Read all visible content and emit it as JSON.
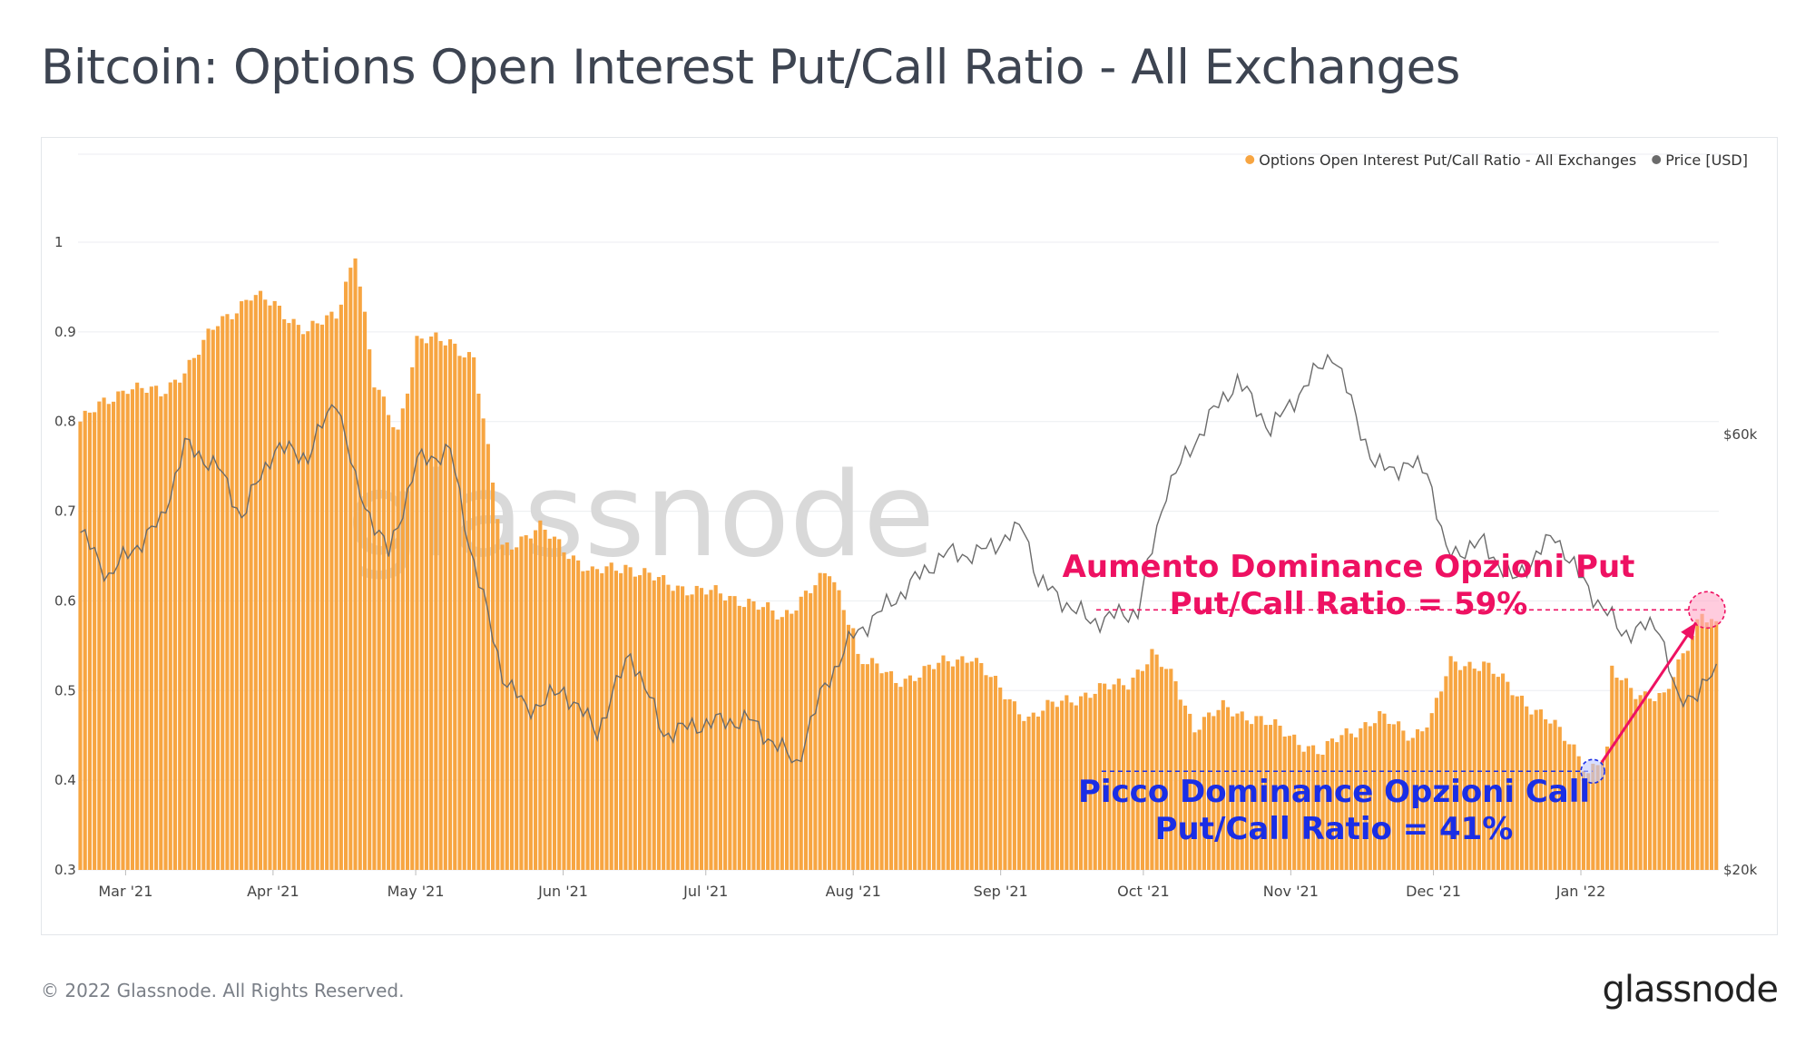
{
  "title": "Bitcoin: Options Open Interest Put/Call Ratio - All Exchanges",
  "footer": {
    "copyright": "© 2022 Glassnode. All Rights Reserved.",
    "logo": "glassnode"
  },
  "watermark": "glassnode",
  "colors": {
    "bars": "#f7a541",
    "price_line": "#6b6b6b",
    "put_annotation": "#ee1162",
    "call_annotation": "#1a2ee6",
    "grid": "#eceef1",
    "axis_text": "#444444"
  },
  "chart_data": {
    "type": "bar",
    "legend": {
      "placement": "top-right",
      "entries": [
        {
          "name": "Options Open Interest Put/Call Ratio - All Exchanges",
          "color": "#f7a541"
        },
        {
          "name": "Price [USD]",
          "color": "#6b6b6b"
        }
      ]
    },
    "x_range": [
      "2021-02-19",
      "2022-01-30"
    ],
    "x_ticks": [
      "Mar '21",
      "Apr '21",
      "May '21",
      "Jun '21",
      "Jul '21",
      "Aug '21",
      "Sep '21",
      "Oct '21",
      "Nov '21",
      "Dec '21",
      "Jan '22"
    ],
    "x_tick_dates": [
      "2021-03-01",
      "2021-04-01",
      "2021-05-01",
      "2021-06-01",
      "2021-07-01",
      "2021-08-01",
      "2021-09-01",
      "2021-10-01",
      "2021-11-01",
      "2021-12-01",
      "2022-01-01"
    ],
    "y_left": {
      "ticks": [
        "0.3",
        "0.4",
        "0.5",
        "0.6",
        "0.7",
        "0.8",
        "0.9",
        "1"
      ],
      "range": [
        0.3,
        1.0
      ]
    },
    "y_right": {
      "ticks": [
        "$20k",
        "$60k"
      ],
      "range": [
        20000,
        60000
      ]
    },
    "grid": true,
    "series": [
      {
        "name": "Options Open Interest Put/Call Ratio - All Exchanges",
        "type": "bar",
        "points": [
          [
            "2021-02-19",
            0.8
          ],
          [
            "2021-03-01",
            0.84
          ],
          [
            "2021-03-08",
            0.83
          ],
          [
            "2021-03-15",
            0.87
          ],
          [
            "2021-03-20",
            0.91
          ],
          [
            "2021-03-27",
            0.94
          ],
          [
            "2021-04-01",
            0.93
          ],
          [
            "2021-04-08",
            0.9
          ],
          [
            "2021-04-14",
            0.92
          ],
          [
            "2021-04-18",
            0.99
          ],
          [
            "2021-04-22",
            0.84
          ],
          [
            "2021-04-27",
            0.79
          ],
          [
            "2021-05-01",
            0.89
          ],
          [
            "2021-05-08",
            0.89
          ],
          [
            "2021-05-13",
            0.87
          ],
          [
            "2021-05-19",
            0.66
          ],
          [
            "2021-05-27",
            0.68
          ],
          [
            "2021-06-01",
            0.66
          ],
          [
            "2021-06-07",
            0.63
          ],
          [
            "2021-06-14",
            0.64
          ],
          [
            "2021-06-22",
            0.62
          ],
          [
            "2021-07-01",
            0.61
          ],
          [
            "2021-07-10",
            0.6
          ],
          [
            "2021-07-17",
            0.58
          ],
          [
            "2021-07-22",
            0.61
          ],
          [
            "2021-07-27",
            0.63
          ],
          [
            "2021-08-01",
            0.57
          ],
          [
            "2021-08-02",
            0.54
          ],
          [
            "2021-08-10",
            0.51
          ],
          [
            "2021-08-20",
            0.53
          ],
          [
            "2021-08-26",
            0.54
          ],
          [
            "2021-09-01",
            0.5
          ],
          [
            "2021-09-07",
            0.47
          ],
          [
            "2021-09-15",
            0.49
          ],
          [
            "2021-09-22",
            0.5
          ],
          [
            "2021-09-28",
            0.51
          ],
          [
            "2021-10-03",
            0.54
          ],
          [
            "2021-10-08",
            0.51
          ],
          [
            "2021-10-12",
            0.46
          ],
          [
            "2021-10-18",
            0.48
          ],
          [
            "2021-10-25",
            0.47
          ],
          [
            "2021-11-01",
            0.45
          ],
          [
            "2021-11-08",
            0.43
          ],
          [
            "2021-11-12",
            0.45
          ],
          [
            "2021-11-20",
            0.47
          ],
          [
            "2021-11-27",
            0.45
          ],
          [
            "2021-12-01",
            0.47
          ],
          [
            "2021-12-05",
            0.53
          ],
          [
            "2021-12-12",
            0.53
          ],
          [
            "2021-12-18",
            0.5
          ],
          [
            "2021-12-25",
            0.47
          ],
          [
            "2022-01-01",
            0.43
          ],
          [
            "2022-01-03",
            0.41
          ],
          [
            "2022-01-07",
            0.43
          ],
          [
            "2022-01-08",
            0.52
          ],
          [
            "2022-01-13",
            0.5
          ],
          [
            "2022-01-19",
            0.49
          ],
          [
            "2022-01-23",
            0.54
          ],
          [
            "2022-01-27",
            0.59
          ],
          [
            "2022-01-30",
            0.57
          ]
        ]
      },
      {
        "name": "Price [USD]",
        "type": "line",
        "points": [
          [
            "2021-02-19",
            51000
          ],
          [
            "2021-02-25",
            47000
          ],
          [
            "2021-03-01",
            49000
          ],
          [
            "2021-03-08",
            52000
          ],
          [
            "2021-03-13",
            59000
          ],
          [
            "2021-03-20",
            57000
          ],
          [
            "2021-03-25",
            52500
          ],
          [
            "2021-04-01",
            58800
          ],
          [
            "2021-04-08",
            58000
          ],
          [
            "2021-04-14",
            63500
          ],
          [
            "2021-04-18",
            55500
          ],
          [
            "2021-04-25",
            49000
          ],
          [
            "2021-05-01",
            57500
          ],
          [
            "2021-05-08",
            58500
          ],
          [
            "2021-05-12",
            50000
          ],
          [
            "2021-05-19",
            38000
          ],
          [
            "2021-05-24",
            34700
          ],
          [
            "2021-06-01",
            36500
          ],
          [
            "2021-06-08",
            32700
          ],
          [
            "2021-06-15",
            40000
          ],
          [
            "2021-06-22",
            32500
          ],
          [
            "2021-07-01",
            33500
          ],
          [
            "2021-07-10",
            33800
          ],
          [
            "2021-07-20",
            29800
          ],
          [
            "2021-07-26",
            37000
          ],
          [
            "2021-08-01",
            41500
          ],
          [
            "2021-08-10",
            45000
          ],
          [
            "2021-08-20",
            49000
          ],
          [
            "2021-08-27",
            49000
          ],
          [
            "2021-09-06",
            51500
          ],
          [
            "2021-09-09",
            46500
          ],
          [
            "2021-09-20",
            42800
          ],
          [
            "2021-09-30",
            43800
          ],
          [
            "2021-10-06",
            55000
          ],
          [
            "2021-10-15",
            61500
          ],
          [
            "2021-10-21",
            65000
          ],
          [
            "2021-10-28",
            60500
          ],
          [
            "2021-11-10",
            67600
          ],
          [
            "2021-11-19",
            57000
          ],
          [
            "2021-11-30",
            57000
          ],
          [
            "2021-12-04",
            49000
          ],
          [
            "2021-12-12",
            50000
          ],
          [
            "2021-12-18",
            46500
          ],
          [
            "2021-12-27",
            50800
          ],
          [
            "2022-01-01",
            47000
          ],
          [
            "2022-01-10",
            41800
          ],
          [
            "2022-01-18",
            42500
          ],
          [
            "2022-01-22",
            35100
          ],
          [
            "2022-01-30",
            38000
          ]
        ]
      }
    ],
    "annotations": [
      {
        "label": "Aumento Dominance Opzioni Put",
        "value_label": "Put/Call Ratio = 59%",
        "date": "2022-01-27",
        "value": 0.59,
        "color": "#ee1162"
      },
      {
        "label": "Picco Dominance Opzioni Call",
        "value_label": "Put/Call Ratio = 41%",
        "date": "2022-01-03",
        "value": 0.41,
        "color": "#1a2ee6"
      }
    ]
  }
}
